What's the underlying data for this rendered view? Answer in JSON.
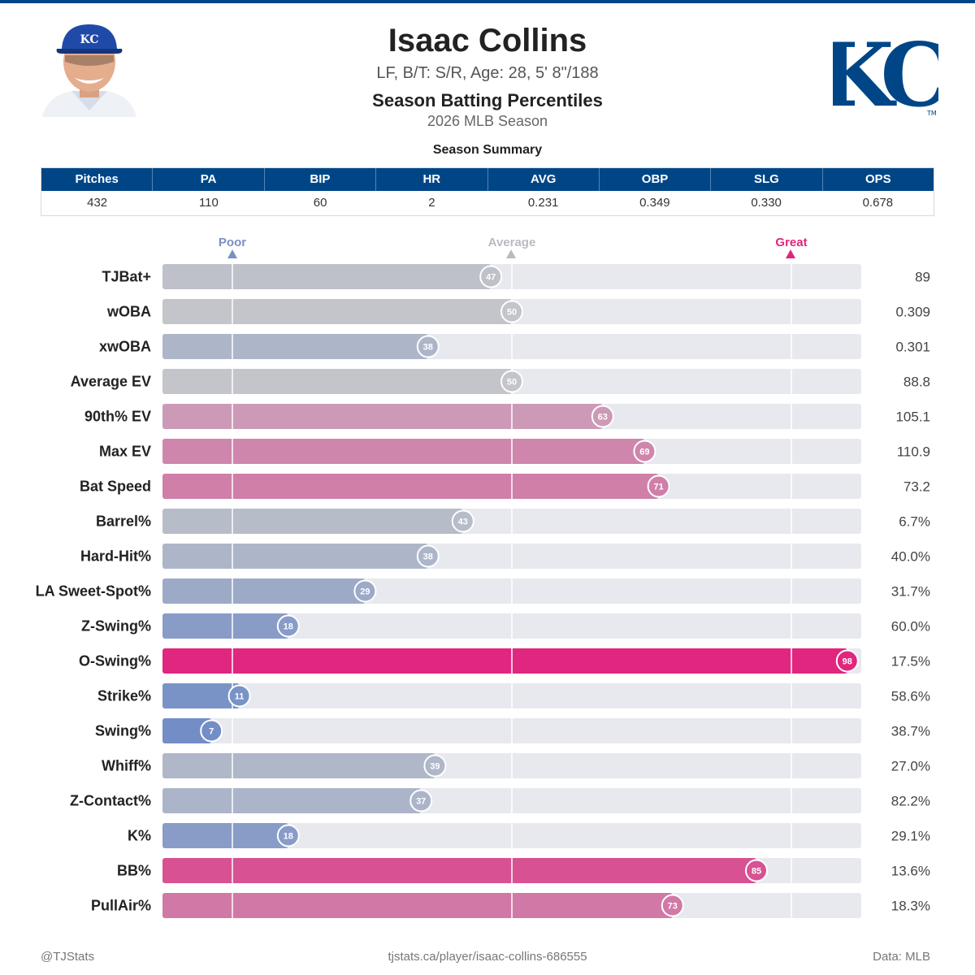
{
  "header": {
    "name": "Isaac Collins",
    "info": "LF, B/T: S/R, Age: 28, 5' 8\"/188",
    "title": "Season Batting Percentiles",
    "subtitle": "2026 MLB Season",
    "logo_text": "KC",
    "logo_tm": "TM",
    "cap_text": "KC"
  },
  "summary": {
    "title": "Season Summary",
    "headers": [
      "Pitches",
      "PA",
      "BIP",
      "HR",
      "AVG",
      "OBP",
      "SLG",
      "OPS"
    ],
    "values": [
      "432",
      "110",
      "60",
      "2",
      "0.231",
      "0.349",
      "0.330",
      "0.678"
    ]
  },
  "markers": {
    "poor": "Poor",
    "average": "Average",
    "great": "Great"
  },
  "colors": {
    "brand_blue": "#004687",
    "poor": "#6f8bc6",
    "average": "#c4c5ca",
    "great": "#e0267f",
    "track": "#e8e9ee"
  },
  "chart_data": {
    "type": "bar",
    "orientation": "horizontal",
    "xlim": [
      0,
      100
    ],
    "reference_lines": [
      10,
      50,
      90
    ],
    "categories": [
      "TJBat+",
      "wOBA",
      "xwOBA",
      "Average EV",
      "90th% EV",
      "Max EV",
      "Bat Speed",
      "Barrel%",
      "Hard-Hit%",
      "LA Sweet-Spot%",
      "Z-Swing%",
      "O-Swing%",
      "Strike%",
      "Swing%",
      "Whiff%",
      "Z-Contact%",
      "K%",
      "BB%",
      "PullAir%"
    ],
    "percentiles": [
      47,
      50,
      38,
      50,
      63,
      69,
      71,
      43,
      38,
      29,
      18,
      98,
      11,
      7,
      39,
      37,
      18,
      85,
      73
    ],
    "stat_values": [
      "89",
      "0.309",
      "0.301",
      "88.8",
      "105.1",
      "110.9",
      "73.2",
      "6.7%",
      "40.0%",
      "31.7%",
      "60.0%",
      "17.5%",
      "58.6%",
      "38.7%",
      "27.0%",
      "82.2%",
      "29.1%",
      "13.6%",
      "18.3%"
    ]
  },
  "footer": {
    "left": "@TJStats",
    "center": "tjstats.ca/player/isaac-collins-686555",
    "right": "Data: MLB"
  }
}
